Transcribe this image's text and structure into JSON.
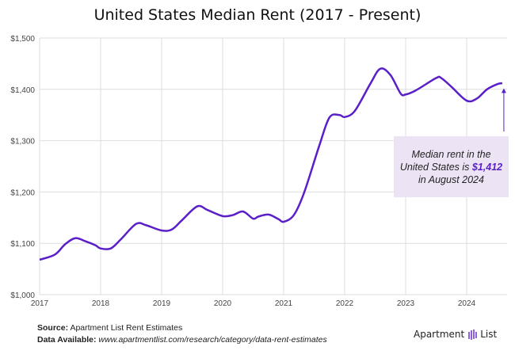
{
  "chart_data": {
    "type": "line",
    "title": "United States Median Rent (2017 - Present)",
    "xlabel": "",
    "ylabel": "",
    "x_ticks": [
      "2017",
      "2018",
      "2019",
      "2020",
      "2021",
      "2022",
      "2023",
      "2024"
    ],
    "y_ticks": [
      "$1,000",
      "$1,100",
      "$1,200",
      "$1,300",
      "$1,400",
      "$1,500"
    ],
    "ylim": [
      1000,
      1500
    ],
    "xlim": [
      "2017-01",
      "2024-10"
    ],
    "grid": true,
    "line_color": "#5a1fc8",
    "x": [
      "2017-01",
      "2017-04",
      "2017-06",
      "2017-08",
      "2017-10",
      "2017-12",
      "2018-01",
      "2018-03",
      "2018-05",
      "2018-08",
      "2018-10",
      "2019-01",
      "2019-03",
      "2019-05",
      "2019-08",
      "2019-10",
      "2020-01",
      "2020-03",
      "2020-05",
      "2020-07",
      "2020-08",
      "2020-10",
      "2020-12",
      "2021-01",
      "2021-03",
      "2021-05",
      "2021-08",
      "2021-10",
      "2021-12",
      "2022-01",
      "2022-03",
      "2022-06",
      "2022-08",
      "2022-10",
      "2022-12",
      "2023-01",
      "2023-03",
      "2023-07",
      "2023-08",
      "2023-10",
      "2024-01",
      "2024-03",
      "2024-05",
      "2024-07",
      "2024-08"
    ],
    "values": [
      1068,
      1078,
      1098,
      1110,
      1104,
      1096,
      1090,
      1090,
      1108,
      1138,
      1135,
      1125,
      1127,
      1145,
      1172,
      1165,
      1153,
      1155,
      1162,
      1148,
      1152,
      1156,
      1147,
      1142,
      1155,
      1198,
      1290,
      1345,
      1350,
      1346,
      1358,
      1410,
      1440,
      1428,
      1392,
      1390,
      1398,
      1422,
      1422,
      1405,
      1378,
      1382,
      1400,
      1410,
      1412
    ]
  },
  "annotation": {
    "line1": "Median rent in the",
    "line2": "United States is ",
    "value": "$1,412",
    "line3": "in August 2024"
  },
  "footer": {
    "source_label": "Source:",
    "source": "Apartment List Rent Estimates",
    "data_label": "Data Available:",
    "data_url": "www.apartmentlist.com/research/category/data-rent-estimates"
  },
  "logo": {
    "left": "Apartment",
    "right": "List"
  }
}
